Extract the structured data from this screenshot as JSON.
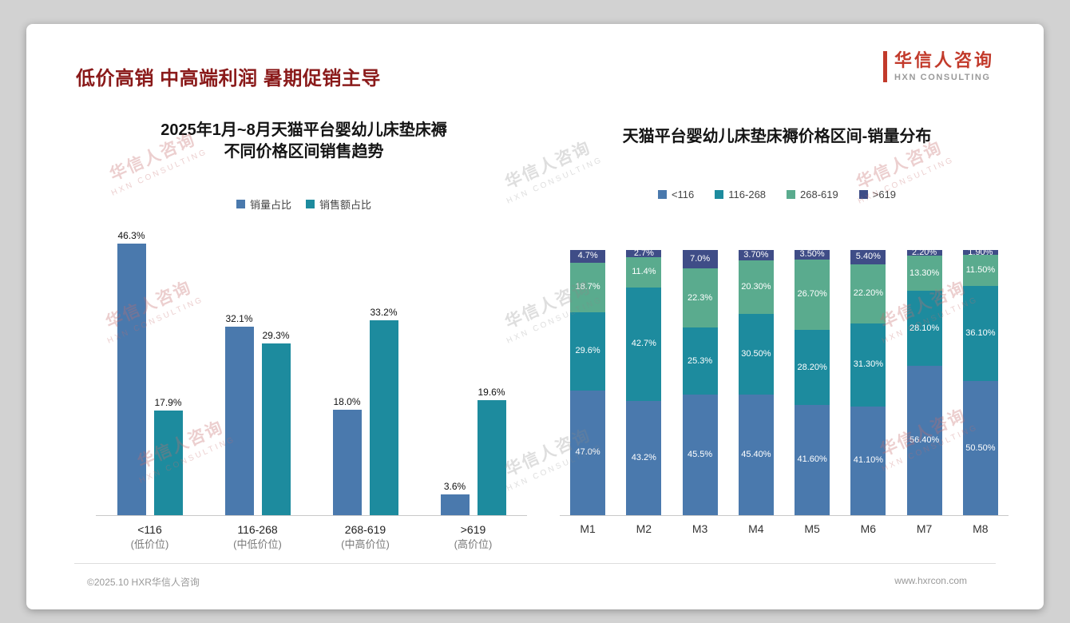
{
  "page": {
    "title": "低价高销 中高端利润 暑期促销主导",
    "logo": {
      "cn": "华信人咨询",
      "en": "HXN CONSULTING"
    },
    "watermark": {
      "cn": "华信人咨询",
      "en": "HXN CONSULTING"
    },
    "footer": {
      "left": "©2025.10 HXR华信人咨询",
      "right": "www.hxrcon.com"
    },
    "colors": {
      "title": "#8a1a1a",
      "logo_red": "#c23a2b"
    }
  },
  "chart_data": [
    {
      "type": "bar",
      "stacked": false,
      "title": "2025年1月~8月天猫平台婴幼儿床垫床褥 不同价格区间销售趋势",
      "title_lines": [
        "2025年1月~8月天猫平台婴幼儿床垫床褥",
        "不同价格区间销售趋势"
      ],
      "categories": [
        "<116",
        "116-268",
        "268-619",
        ">619"
      ],
      "category_sublabels": [
        "(低价位)",
        "(中低价位)",
        "(中高价位)",
        "(高价位)"
      ],
      "series": [
        {
          "name": "销量占比",
          "color": "#4a79ad",
          "values": [
            46.3,
            32.1,
            18.0,
            3.6
          ],
          "labels": [
            "46.3%",
            "32.1%",
            "18.0%",
            "3.6%"
          ]
        },
        {
          "name": "销售额占比",
          "color": "#1d8b9e",
          "values": [
            17.9,
            29.3,
            33.2,
            19.6
          ],
          "labels": [
            "17.9%",
            "29.3%",
            "33.2%",
            "19.6%"
          ]
        }
      ],
      "xlabel": "",
      "ylabel": "",
      "ylim": [
        0,
        50
      ],
      "grid": false,
      "legend_position": "top",
      "value_suffix": "%"
    },
    {
      "type": "bar",
      "stacked": true,
      "title": "天猫平台婴幼儿床垫床褥价格区间-销量分布",
      "categories": [
        "M1",
        "M2",
        "M3",
        "M4",
        "M5",
        "M6",
        "M7",
        "M8"
      ],
      "series": [
        {
          "name": "<116",
          "color": "#4a79ad",
          "values": [
            47.0,
            43.2,
            45.5,
            45.4,
            41.6,
            41.1,
            56.4,
            50.5
          ],
          "labels": [
            "47.0%",
            "43.2%",
            "45.5%",
            "45.40%",
            "41.60%",
            "41.10%",
            "56.40%",
            "50.50%"
          ]
        },
        {
          "name": "116-268",
          "color": "#1d8b9e",
          "values": [
            29.6,
            42.7,
            25.3,
            30.5,
            28.2,
            31.3,
            28.1,
            36.1
          ],
          "labels": [
            "29.6%",
            "42.7%",
            "25.3%",
            "30.50%",
            "28.20%",
            "31.30%",
            "28.10%",
            "36.10%"
          ]
        },
        {
          "name": "268-619",
          "color": "#5aab8e",
          "values": [
            18.7,
            11.4,
            22.3,
            20.3,
            26.7,
            22.2,
            13.3,
            11.5
          ],
          "labels": [
            "18.7%",
            "11.4%",
            "22.3%",
            "20.30%",
            "26.70%",
            "22.20%",
            "13.30%",
            "11.50%"
          ]
        },
        {
          "name": ">619",
          "color": "#3f4d87",
          "values": [
            4.7,
            2.7,
            7.0,
            3.7,
            3.5,
            5.4,
            2.2,
            1.9
          ],
          "labels": [
            "4.7%",
            "2.7%",
            "7.0%",
            "3.70%",
            "3.50%",
            "5.40%",
            "2.20%",
            "1.90%"
          ]
        }
      ],
      "xlabel": "",
      "ylabel": "",
      "ylim": [
        0,
        100
      ],
      "grid": false,
      "legend_position": "top",
      "value_suffix": "%"
    }
  ]
}
